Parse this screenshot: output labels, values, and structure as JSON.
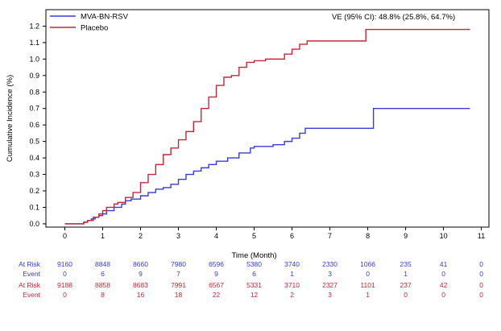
{
  "chart_data": {
    "type": "line",
    "step": true,
    "xlabel": "Time (Month)",
    "ylabel": "Cumulative Incidence (%)",
    "xlim": [
      -0.5,
      11.2
    ],
    "ylim": [
      -0.02,
      1.3
    ],
    "x_ticks": [
      0,
      1,
      2,
      3,
      4,
      5,
      6,
      7,
      8,
      9,
      10,
      11
    ],
    "y_ticks": [
      "0.0",
      "0.1",
      "0.2",
      "0.3",
      "0.4",
      "0.5",
      "0.6",
      "0.7",
      "0.8",
      "0.9",
      "1.0",
      "1.1",
      "1.2"
    ],
    "annotation": "VE (95% CI): 48.8% (25.8%, 64.7%)",
    "legend_position": "top-left",
    "colors": {
      "MVA-BN-RSV": "#3a3ad8",
      "Placebo": "#c0283a"
    },
    "series": [
      {
        "name": "MVA-BN-RSV",
        "color": "#3a3ad8",
        "points": [
          [
            0,
            0
          ],
          [
            0.45,
            0
          ],
          [
            0.5,
            0.01
          ],
          [
            0.6,
            0.02
          ],
          [
            0.7,
            0.03
          ],
          [
            0.8,
            0.04
          ],
          [
            0.9,
            0.05
          ],
          [
            1.0,
            0.06
          ],
          [
            1.1,
            0.08
          ],
          [
            1.3,
            0.1
          ],
          [
            1.5,
            0.12
          ],
          [
            1.6,
            0.14
          ],
          [
            1.75,
            0.15
          ],
          [
            2.0,
            0.17
          ],
          [
            2.2,
            0.19
          ],
          [
            2.4,
            0.21
          ],
          [
            2.6,
            0.22
          ],
          [
            2.8,
            0.24
          ],
          [
            3.0,
            0.27
          ],
          [
            3.2,
            0.3
          ],
          [
            3.4,
            0.32
          ],
          [
            3.6,
            0.34
          ],
          [
            3.8,
            0.36
          ],
          [
            4.0,
            0.38
          ],
          [
            4.3,
            0.4
          ],
          [
            4.6,
            0.43
          ],
          [
            4.9,
            0.46
          ],
          [
            5.0,
            0.47
          ],
          [
            5.5,
            0.48
          ],
          [
            5.8,
            0.5
          ],
          [
            6.0,
            0.52
          ],
          [
            6.2,
            0.55
          ],
          [
            6.35,
            0.58
          ],
          [
            8.1,
            0.58
          ],
          [
            8.15,
            0.7
          ],
          [
            10.7,
            0.7
          ]
        ]
      },
      {
        "name": "Placebo",
        "color": "#c0283a",
        "points": [
          [
            0,
            0
          ],
          [
            0.45,
            0
          ],
          [
            0.5,
            0.01
          ],
          [
            0.6,
            0.02
          ],
          [
            0.75,
            0.04
          ],
          [
            0.9,
            0.06
          ],
          [
            1.0,
            0.08
          ],
          [
            1.1,
            0.1
          ],
          [
            1.3,
            0.12
          ],
          [
            1.4,
            0.13
          ],
          [
            1.6,
            0.16
          ],
          [
            1.8,
            0.19
          ],
          [
            2.0,
            0.25
          ],
          [
            2.2,
            0.3
          ],
          [
            2.4,
            0.36
          ],
          [
            2.6,
            0.42
          ],
          [
            2.8,
            0.46
          ],
          [
            3.0,
            0.51
          ],
          [
            3.2,
            0.56
          ],
          [
            3.4,
            0.62
          ],
          [
            3.6,
            0.7
          ],
          [
            3.8,
            0.77
          ],
          [
            4.0,
            0.84
          ],
          [
            4.2,
            0.89
          ],
          [
            4.4,
            0.9
          ],
          [
            4.6,
            0.95
          ],
          [
            4.8,
            0.98
          ],
          [
            5.0,
            0.99
          ],
          [
            5.3,
            1.0
          ],
          [
            5.8,
            1.03
          ],
          [
            6.0,
            1.06
          ],
          [
            6.2,
            1.09
          ],
          [
            6.4,
            1.11
          ],
          [
            7.4,
            1.11
          ],
          [
            7.9,
            1.11
          ],
          [
            7.95,
            1.18
          ],
          [
            10.7,
            1.18
          ]
        ]
      }
    ],
    "risk_table": [
      {
        "label": "At Risk",
        "color": "#3a3ad8",
        "values": [
          "9160",
          "8848",
          "8660",
          "7980",
          "6596",
          "5380",
          "3740",
          "2330",
          "1066",
          "235",
          "41",
          "0"
        ]
      },
      {
        "label": "Event",
        "color": "#3a3ad8",
        "values": [
          "0",
          "6",
          "9",
          "7",
          "9",
          "6",
          "1",
          "3",
          "0",
          "1",
          "0",
          "0"
        ]
      },
      {
        "label": "At Risk",
        "color": "#c0283a",
        "values": [
          "9188",
          "8858",
          "8683",
          "7991",
          "6567",
          "5331",
          "3710",
          "2327",
          "1101",
          "237",
          "42",
          "0"
        ]
      },
      {
        "label": "Event",
        "color": "#c0283a",
        "values": [
          "0",
          "8",
          "16",
          "18",
          "22",
          "12",
          "2",
          "3",
          "1",
          "0",
          "0",
          "0"
        ]
      }
    ]
  }
}
